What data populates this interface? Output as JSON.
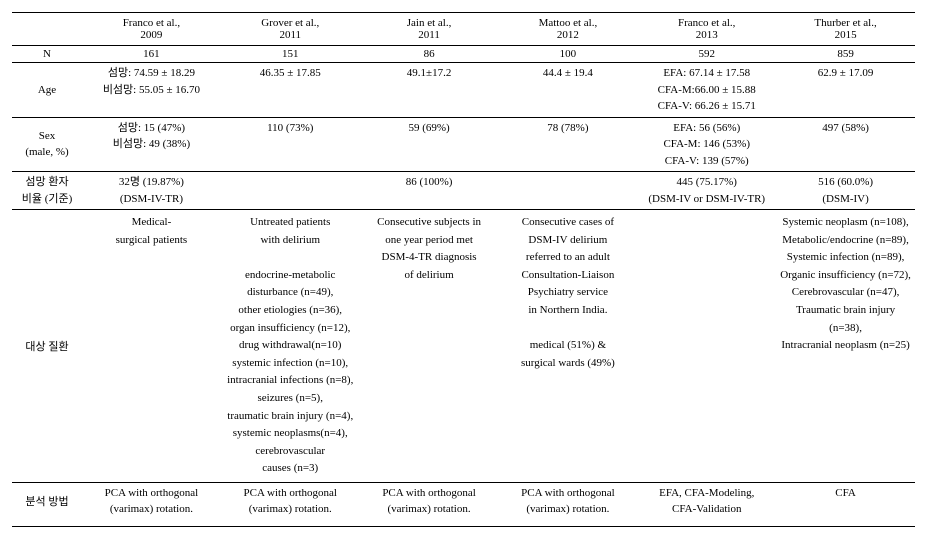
{
  "columns": [
    {
      "author": "Franco et al.,",
      "year": "2009"
    },
    {
      "author": "Grover et al.,",
      "year": "2011"
    },
    {
      "author": "Jain et al.,",
      "year": "2011"
    },
    {
      "author": "Mattoo et al.,",
      "year": "2012"
    },
    {
      "author": "Franco et al.,",
      "year": "2013"
    },
    {
      "author": "Thurber et al.,",
      "year": "2015"
    }
  ],
  "rows": {
    "n": {
      "label": "N",
      "vals": [
        "161",
        "151",
        "86",
        "100",
        "592",
        "859"
      ]
    },
    "age": {
      "label": "Age",
      "vals": [
        "섬망: 74.59 ± 18.29\n비섬망: 55.05 ± 16.70",
        "46.35 ± 17.85",
        "49.1±17.2",
        "44.4 ± 19.4",
        "EFA: 67.14 ± 17.58\nCFA-M:66.00 ± 15.88\nCFA-V: 66.26 ± 15.71",
        "62.9 ± 17.09"
      ]
    },
    "sex": {
      "label": "Sex\n(male, %)",
      "vals": [
        "섬망: 15 (47%)\n비섬망: 49 (38%)",
        "110 (73%)",
        "59 (69%)",
        "78 (78%)",
        "EFA: 56 (56%)\nCFA-M: 146 (53%)\nCFA-V: 139 (57%)",
        "497 (58%)"
      ]
    },
    "delirium": {
      "label": "섬망 환자\n비율 (기준)",
      "vals": [
        "32명 (19.87%)\n(DSM-IV-TR)",
        "",
        "86 (100%)",
        "",
        "445 (75.17%)\n(DSM-IV or DSM-IV-TR)",
        "516 (60.0%)\n(DSM-IV)"
      ]
    },
    "disease": {
      "label": "대상 질환",
      "vals": [
        "Medical-\nsurgical patients",
        "Untreated patients\nwith delirium\n\nendocrine-metabolic\ndisturbance (n=49),\nother etiologies (n=36),\norgan insufficiency (n=12),\ndrug withdrawal(n=10)\nsystemic infection (n=10),\nintracranial infections (n=8),\nseizures (n=5),\ntraumatic brain injury (n=4),\nsystemic neoplasms(n=4),\ncerebrovascular\ncauses (n=3)",
        "Consecutive subjects in\none year period met\nDSM-4-TR diagnosis\nof delirium",
        "Consecutive cases of\nDSM-IV delirium\nreferred to an adult\nConsultation-Liaison\nPsychiatry service\nin Northern India.\n\nmedical (51%) &\nsurgical wards (49%)",
        "",
        "Systemic neoplasm (n=108),\nMetabolic/endocrine (n=89),\nSystemic infection (n=89),\nOrganic insufficiency (n=72),\nCerebrovascular (n=47),\nTraumatic brain injury (n=38),\nIntracranial neoplasm (n=25)"
      ]
    },
    "method": {
      "label": "분석 방법",
      "vals": [
        "PCA with orthogonal\n(varimax) rotation.",
        "PCA with orthogonal\n(varimax) rotation.",
        "PCA with orthogonal\n(varimax) rotation.",
        "PCA with orthogonal\n(varimax) rotation.",
        "EFA, CFA-Modeling,\nCFA-Validation",
        "CFA"
      ]
    }
  }
}
